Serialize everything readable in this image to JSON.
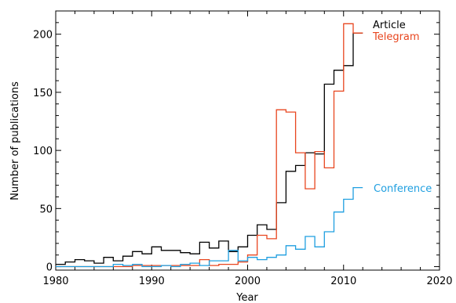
{
  "chart_data": {
    "type": "line",
    "step": true,
    "xlabel": "Year",
    "ylabel": "Number of publications",
    "xlim": [
      1980,
      2020
    ],
    "ylim": [
      -3,
      220
    ],
    "xticks": [
      1980,
      1990,
      2000,
      2010,
      2020
    ],
    "yticks": [
      0,
      50,
      100,
      150,
      200
    ],
    "x": [
      1980,
      1981,
      1982,
      1983,
      1984,
      1985,
      1986,
      1987,
      1988,
      1989,
      1990,
      1991,
      1992,
      1993,
      1994,
      1995,
      1996,
      1997,
      1998,
      1999,
      2000,
      2001,
      2002,
      2003,
      2004,
      2005,
      2006,
      2007,
      2008,
      2009,
      2010,
      2011
    ],
    "series": [
      {
        "name": "Article",
        "color": "#000000",
        "values": [
          2,
          4,
          6,
          5,
          3,
          8,
          5,
          9,
          13,
          11,
          17,
          14,
          14,
          12,
          11,
          21,
          16,
          22,
          13,
          17,
          27,
          36,
          32,
          55,
          82,
          87,
          98,
          97,
          157,
          169,
          173,
          201
        ]
      },
      {
        "name": "Telegram",
        "color": "#e8461f",
        "values": [
          0,
          0,
          0,
          0,
          0,
          0,
          0,
          0,
          1,
          1,
          1,
          1,
          1,
          1,
          1,
          6,
          1,
          2,
          2,
          4,
          10,
          27,
          24,
          135,
          133,
          98,
          67,
          99,
          85,
          151,
          209,
          201
        ]
      },
      {
        "name": "Conference",
        "color": "#1f9fe0",
        "values": [
          0,
          0,
          0,
          0,
          0,
          0,
          2,
          1,
          2,
          0,
          0,
          1,
          0,
          2,
          3,
          1,
          5,
          5,
          14,
          5,
          8,
          6,
          8,
          10,
          18,
          15,
          26,
          17,
          30,
          47,
          58,
          68
        ]
      }
    ]
  }
}
